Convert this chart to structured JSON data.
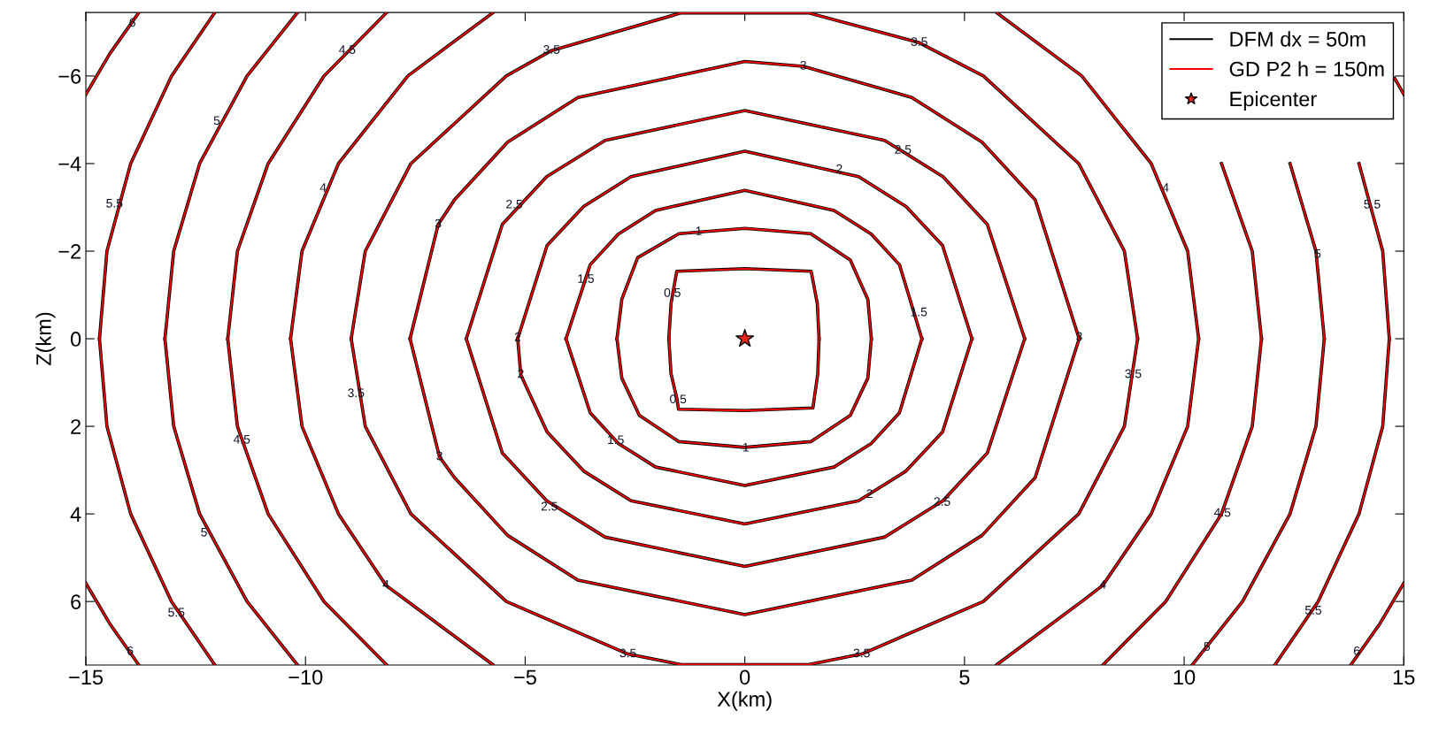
{
  "chart_data": {
    "type": "line",
    "xlabel": "X(km)",
    "ylabel": "Z(km)",
    "xlim": [
      -15,
      15
    ],
    "ylim": [
      7.45,
      -7.45
    ],
    "xticks": [
      -15,
      -10,
      -5,
      0,
      5,
      10,
      15
    ],
    "yticks": [
      -6,
      -4,
      -2,
      0,
      2,
      4,
      6
    ],
    "grid": false,
    "legend": "top right",
    "x": [
      -1.73,
      -1.68,
      -1.55,
      0,
      1.51,
      1.65,
      1.69,
      null,
      1.69,
      1.66,
      1.55,
      0,
      -1.51,
      -1.55,
      -1.68,
      -1.73,
      null,
      -2.91,
      -2.8,
      -2.44,
      -1.5,
      0,
      1.5,
      2.4,
      2.8,
      2.88,
      null,
      2.88,
      2.8,
      2.4,
      1.5,
      0,
      -1.5,
      -2.4,
      -2.8,
      -2.91,
      null,
      -4.07,
      -3.52,
      -2.88,
      -2.03,
      0,
      2.03,
      2.88,
      3.52,
      4.03,
      null,
      4.03,
      3.52,
      2.88,
      2.03,
      0,
      -2.03,
      -2.88,
      -3.52,
      -4.07,
      null,
      -5.17,
      -4.5,
      -3.67,
      -2.59,
      0,
      2.59,
      3.67,
      4.5,
      5.17,
      null,
      5.17,
      4.5,
      3.67,
      2.59,
      0,
      -2.59,
      -3.67,
      -4.5,
      -5.1,
      -5.17,
      null,
      -6.34,
      -5.52,
      -4.51,
      -3.18,
      0,
      3.18,
      4.51,
      5.52,
      6.37,
      null,
      6.37,
      5.52,
      4.51,
      3.18,
      0,
      -3.18,
      -4.51,
      -5.52,
      -6.34,
      null,
      -7.62,
      -6.98,
      -6.61,
      -5.4,
      -3.8,
      0,
      1.33,
      3.8,
      5.4,
      6.61,
      7.61,
      null,
      7.61,
      6.61,
      5.4,
      3.8,
      0,
      -3.8,
      -5.4,
      -6.61,
      -6.95,
      -7.62,
      null,
      -8.96,
      -8.64,
      -7.6,
      -5.43,
      -4.4,
      -1.45,
      1.45,
      3.97,
      5.43,
      7.6,
      8.64,
      8.94,
      null,
      8.94,
      8.64,
      7.6,
      5.43,
      2.66,
      1.45,
      -1.45,
      -2.66,
      -5.43,
      -7.6,
      -8.64,
      -8.96,
      null,
      -5.74,
      -7.67,
      -9.25,
      -10.08,
      -10.34,
      null,
      -10.34,
      -10.08,
      -9.25,
      -8.17,
      -7.67,
      -5.74,
      null,
      5.74,
      7.67,
      9.25,
      10.08,
      10.33,
      null,
      10.33,
      10.08,
      9.25,
      8.15,
      7.67,
      5.74,
      null,
      -8.16,
      -9.58,
      -10.85,
      -11.55,
      -11.77,
      null,
      -11.77,
      -11.55,
      -10.85,
      -9.58,
      -8.16,
      null,
      null,
      null,
      10.85,
      11.55,
      11.76,
      null,
      11.76,
      11.55,
      10.85,
      9.58,
      8.16,
      null,
      -10.19,
      -11.33,
      -12.41,
      -13.0,
      -13.2,
      null,
      -13.2,
      -13.0,
      -12.41,
      -11.33,
      -10.19,
      null,
      null,
      null,
      12.41,
      13.0,
      13.19,
      null,
      13.19,
      13.0,
      12.41,
      11.33,
      10.19,
      null,
      -12.07,
      -13.05,
      -13.98,
      -14.52,
      -14.69,
      null,
      -14.69,
      -14.52,
      -13.98,
      -13.05,
      -12.07,
      null,
      null,
      null,
      13.98,
      14.52,
      14.67,
      null,
      14.67,
      14.52,
      13.98,
      13.05,
      12.07,
      null,
      -15,
      -14.46,
      -13.8,
      null,
      -15,
      -14.46,
      -13.8,
      null,
      15,
      14.79,
      null,
      15,
      14.46,
      13.8
    ],
    "series": [
      {
        "name": "DFM dx = 50m",
        "color": "#000000",
        "values": [
          0,
          -0.8,
          -1.54,
          -1.6,
          -1.54,
          -0.8,
          0,
          null,
          0,
          0.8,
          1.58,
          1.64,
          1.61,
          1.35,
          0.8,
          0,
          null,
          0,
          -0.9,
          -1.85,
          -2.4,
          -2.52,
          -2.4,
          -1.8,
          -0.9,
          0,
          null,
          0,
          0.9,
          1.75,
          2.35,
          2.48,
          2.35,
          1.75,
          0.9,
          0,
          null,
          0,
          -1.69,
          -2.39,
          -2.93,
          -3.39,
          -2.93,
          -2.39,
          -1.69,
          0,
          null,
          0,
          1.69,
          2.39,
          2.93,
          3.35,
          2.93,
          2.39,
          1.69,
          0,
          null,
          0,
          -2.13,
          -3.02,
          -3.7,
          -4.28,
          -3.7,
          -3.02,
          -2.13,
          0,
          null,
          0,
          2.13,
          3.02,
          3.7,
          4.23,
          3.7,
          3.02,
          2.13,
          0.82,
          0,
          null,
          0,
          -2.61,
          -3.7,
          -4.53,
          -5.21,
          -4.53,
          -3.7,
          -2.61,
          0,
          null,
          0,
          2.61,
          3.7,
          4.53,
          5.2,
          4.53,
          3.7,
          2.61,
          0,
          null,
          0,
          -2.61,
          -3.17,
          -4.49,
          -5.51,
          -6.33,
          -6.22,
          -5.51,
          -4.49,
          -3.17,
          0,
          null,
          0,
          3.17,
          4.49,
          5.51,
          6.3,
          5.51,
          4.49,
          3.17,
          2.7,
          0,
          null,
          0,
          -2,
          -4,
          -6,
          -6.58,
          -7.44,
          -7.44,
          -6.76,
          -6,
          -4,
          -2,
          0,
          null,
          0,
          2,
          4,
          6,
          7.2,
          7.44,
          7.44,
          7.2,
          6,
          4,
          2,
          0,
          null,
          -7.44,
          -6,
          -4,
          -2,
          0,
          null,
          0,
          2,
          4,
          5.63,
          6,
          7.44,
          null,
          -7.44,
          -6,
          -4,
          -2,
          0,
          null,
          0,
          2,
          4,
          5.63,
          6,
          7.44,
          null,
          -7.44,
          -6,
          -4,
          -2,
          0,
          null,
          0,
          2,
          4,
          6,
          7.44,
          null,
          null,
          null,
          -4,
          -2,
          0,
          null,
          0,
          2,
          4,
          6,
          7.44,
          null,
          -7.44,
          -6,
          -4,
          -2,
          0,
          null,
          0,
          2,
          4,
          6,
          7.44,
          null,
          null,
          null,
          -4,
          -2,
          0,
          null,
          0,
          2,
          4,
          6,
          7.44,
          null,
          -7.44,
          -6,
          -4,
          -2,
          0,
          null,
          0,
          2,
          4,
          6,
          7.44,
          null,
          null,
          null,
          -4,
          -2,
          0,
          null,
          0,
          2,
          4,
          6,
          7.44,
          null,
          -5.58,
          -6.5,
          -7.44,
          null,
          5.58,
          6.5,
          7.44,
          null,
          -5.58,
          -5.95,
          null,
          5.58,
          6.5,
          7.44
        ]
      },
      {
        "name": "GD P2 h = 150m",
        "color": "#ff0000",
        "values": [
          0,
          -0.8,
          -1.54,
          -1.6,
          -1.54,
          -0.8,
          0,
          null,
          0,
          0.8,
          1.58,
          1.64,
          1.61,
          1.35,
          0.8,
          0,
          null,
          0,
          -0.9,
          -1.85,
          -2.4,
          -2.52,
          -2.4,
          -1.8,
          -0.9,
          0,
          null,
          0,
          0.9,
          1.75,
          2.35,
          2.48,
          2.35,
          1.75,
          0.9,
          0,
          null,
          0,
          -1.69,
          -2.39,
          -2.93,
          -3.39,
          -2.93,
          -2.39,
          -1.69,
          0,
          null,
          0,
          1.69,
          2.39,
          2.93,
          3.35,
          2.93,
          2.39,
          1.69,
          0,
          null,
          0,
          -2.13,
          -3.02,
          -3.7,
          -4.28,
          -3.7,
          -3.02,
          -2.13,
          0,
          null,
          0,
          2.13,
          3.02,
          3.7,
          4.23,
          3.7,
          3.02,
          2.13,
          0.82,
          0,
          null,
          0,
          -2.61,
          -3.7,
          -4.53,
          -5.21,
          -4.53,
          -3.7,
          -2.61,
          0,
          null,
          0,
          2.61,
          3.7,
          4.53,
          5.2,
          4.53,
          3.7,
          2.61,
          0,
          null,
          0,
          -2.61,
          -3.17,
          -4.49,
          -5.51,
          -6.33,
          -6.22,
          -5.51,
          -4.49,
          -3.17,
          0,
          null,
          0,
          3.17,
          4.49,
          5.51,
          6.3,
          5.51,
          4.49,
          3.17,
          2.7,
          0,
          null,
          0,
          -2,
          -4,
          -6,
          -6.58,
          -7.44,
          -7.44,
          -6.76,
          -6,
          -4,
          -2,
          0,
          null,
          0,
          2,
          4,
          6,
          7.2,
          7.44,
          7.44,
          7.2,
          6,
          4,
          2,
          0,
          null,
          -7.44,
          -6,
          -4,
          -2,
          0,
          null,
          0,
          2,
          4,
          5.63,
          6,
          7.44,
          null,
          -7.44,
          -6,
          -4,
          -2,
          0,
          null,
          0,
          2,
          4,
          5.63,
          6,
          7.44,
          null,
          -7.44,
          -6,
          -4,
          -2,
          0,
          null,
          0,
          2,
          4,
          6,
          7.44,
          null,
          null,
          null,
          -4,
          -2,
          0,
          null,
          0,
          2,
          4,
          6,
          7.44,
          null,
          -7.44,
          -6,
          -4,
          -2,
          0,
          null,
          0,
          2,
          4,
          6,
          7.44,
          null,
          null,
          null,
          -4,
          -2,
          0,
          null,
          0,
          2,
          4,
          6,
          7.44,
          null,
          -7.44,
          -6,
          -4,
          -2,
          0,
          null,
          0,
          2,
          4,
          6,
          7.44,
          null,
          null,
          null,
          -4,
          -2,
          0,
          null,
          0,
          2,
          4,
          6,
          7.44,
          null,
          -5.58,
          -6.5,
          -7.44,
          null,
          5.58,
          6.5,
          7.44,
          null,
          -5.58,
          -5.95,
          null,
          5.58,
          6.5,
          7.44
        ]
      },
      {
        "name": "Epicenter",
        "type": "scatter",
        "marker": "star",
        "color": "#e8251f",
        "x": [
          0
        ],
        "values": [
          0
        ]
      }
    ],
    "annotations": [
      {
        "text": "0.5",
        "x": -1.65,
        "y": -1.03
      },
      {
        "text": "0.5",
        "x": -1.52,
        "y": 1.4
      },
      {
        "text": "1",
        "x": -1.05,
        "y": -2.44
      },
      {
        "text": "1",
        "x": 0.02,
        "y": 2.5
      },
      {
        "text": "1.5",
        "x": -3.62,
        "y": -1.35
      },
      {
        "text": "1.5",
        "x": 3.96,
        "y": -0.59
      },
      {
        "text": "1.5",
        "x": -2.94,
        "y": 2.33
      },
      {
        "text": "2",
        "x": 2.15,
        "y": -3.86
      },
      {
        "text": "2",
        "x": -5.17,
        "y": -0.02
      },
      {
        "text": "2",
        "x": -5.1,
        "y": 0.82
      },
      {
        "text": "2",
        "x": 2.84,
        "y": 3.56
      },
      {
        "text": "2.5",
        "x": 3.6,
        "y": -4.3
      },
      {
        "text": "2.5",
        "x": -5.25,
        "y": -3.05
      },
      {
        "text": "2.5",
        "x": -4.45,
        "y": 3.85
      },
      {
        "text": "2.5",
        "x": 4.49,
        "y": 3.74
      },
      {
        "text": "3",
        "x": 1.33,
        "y": -6.22
      },
      {
        "text": "3",
        "x": -6.98,
        "y": -2.61
      },
      {
        "text": "3",
        "x": -6.95,
        "y": 2.7
      },
      {
        "text": "3",
        "x": 7.61,
        "y": -0.03
      },
      {
        "text": "3.5",
        "x": -4.4,
        "y": -6.58
      },
      {
        "text": "3.5",
        "x": 3.97,
        "y": -6.76
      },
      {
        "text": "3.5",
        "x": -8.85,
        "y": 1.26
      },
      {
        "text": "3.5",
        "x": 8.84,
        "y": 0.82
      },
      {
        "text": "3.5",
        "x": -2.66,
        "y": 7.2
      },
      {
        "text": "3.5",
        "x": 2.66,
        "y": 7.2
      },
      {
        "text": "4",
        "x": -9.6,
        "y": -3.43
      },
      {
        "text": "4",
        "x": 9.58,
        "y": -3.43
      },
      {
        "text": "4",
        "x": -8.17,
        "y": 5.63
      },
      {
        "text": "4",
        "x": 8.15,
        "y": 5.63
      },
      {
        "text": "4.5",
        "x": -9.05,
        "y": -6.58
      },
      {
        "text": "4.5",
        "x": -11.45,
        "y": 2.32
      },
      {
        "text": "4.5",
        "x": 10.87,
        "y": 3.99
      },
      {
        "text": "5",
        "x": -12.02,
        "y": -4.96
      },
      {
        "text": "5",
        "x": 13.04,
        "y": -1.92
      },
      {
        "text": "5",
        "x": -12.31,
        "y": 4.44
      },
      {
        "text": "5",
        "x": 10.52,
        "y": 7.05
      },
      {
        "text": "5.5",
        "x": -14.35,
        "y": -3.07
      },
      {
        "text": "5.5",
        "x": 14.28,
        "y": -3.05
      },
      {
        "text": "5.5",
        "x": -12.94,
        "y": 6.27
      },
      {
        "text": "5.5",
        "x": 12.94,
        "y": 6.22
      },
      {
        "text": "6",
        "x": -13.94,
        "y": -7.2
      },
      {
        "text": "6",
        "x": -13.99,
        "y": 7.15
      },
      {
        "text": "6",
        "x": 13.93,
        "y": 7.15
      }
    ]
  }
}
